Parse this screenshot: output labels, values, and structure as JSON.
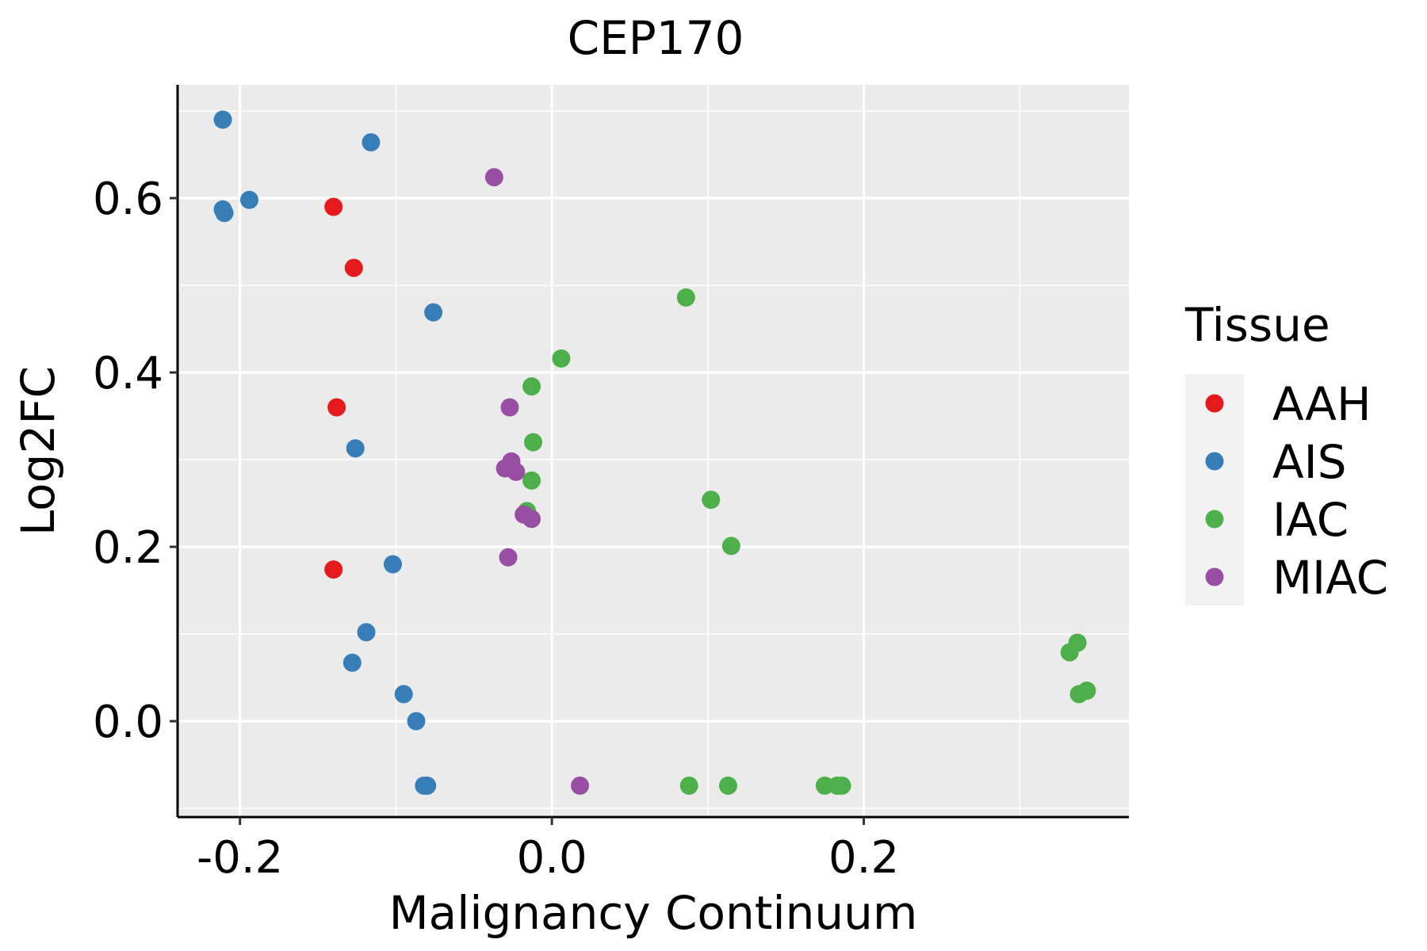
{
  "chart_data": {
    "type": "scatter",
    "title": "CEP170",
    "xlabel": "Malignancy Continuum",
    "ylabel": "Log2FC",
    "xlim": [
      -0.24,
      0.37
    ],
    "ylim": [
      -0.11,
      0.73
    ],
    "x_ticks": [
      -0.2,
      0.0,
      0.2
    ],
    "x_tick_labels": [
      "-0.2",
      "0.0",
      "0.2"
    ],
    "y_ticks": [
      0.0,
      0.2,
      0.4,
      0.6
    ],
    "y_tick_labels": [
      "0.0",
      "0.2",
      "0.4",
      "0.6"
    ],
    "grid": true,
    "legend": {
      "title": "Tissue",
      "position": "right"
    },
    "series": [
      {
        "name": "AAH",
        "color": "#E41A1C",
        "points": [
          {
            "x": -0.14,
            "y": 0.59
          },
          {
            "x": -0.127,
            "y": 0.52
          },
          {
            "x": -0.138,
            "y": 0.36
          },
          {
            "x": -0.14,
            "y": 0.174
          }
        ]
      },
      {
        "name": "AIS",
        "color": "#377EB8",
        "points": [
          {
            "x": -0.211,
            "y": 0.69
          },
          {
            "x": -0.116,
            "y": 0.664
          },
          {
            "x": -0.194,
            "y": 0.598
          },
          {
            "x": -0.211,
            "y": 0.587
          },
          {
            "x": -0.21,
            "y": 0.583
          },
          {
            "x": -0.076,
            "y": 0.469
          },
          {
            "x": -0.126,
            "y": 0.313
          },
          {
            "x": -0.102,
            "y": 0.18
          },
          {
            "x": -0.119,
            "y": 0.102
          },
          {
            "x": -0.128,
            "y": 0.067
          },
          {
            "x": -0.095,
            "y": 0.031
          },
          {
            "x": -0.087,
            "y": 0.0
          },
          {
            "x": -0.082,
            "y": -0.074
          },
          {
            "x": -0.08,
            "y": -0.074
          }
        ]
      },
      {
        "name": "IAC",
        "color": "#4DAF4A",
        "points": [
          {
            "x": 0.086,
            "y": 0.486
          },
          {
            "x": 0.006,
            "y": 0.416
          },
          {
            "x": -0.013,
            "y": 0.384
          },
          {
            "x": -0.012,
            "y": 0.32
          },
          {
            "x": -0.013,
            "y": 0.276
          },
          {
            "x": 0.102,
            "y": 0.254
          },
          {
            "x": -0.016,
            "y": 0.241
          },
          {
            "x": 0.115,
            "y": 0.201
          },
          {
            "x": 0.337,
            "y": 0.09
          },
          {
            "x": 0.332,
            "y": 0.079
          },
          {
            "x": 0.343,
            "y": 0.035
          },
          {
            "x": 0.338,
            "y": 0.031
          },
          {
            "x": 0.088,
            "y": -0.074
          },
          {
            "x": 0.113,
            "y": -0.074
          },
          {
            "x": 0.175,
            "y": -0.074
          },
          {
            "x": 0.183,
            "y": -0.074
          },
          {
            "x": 0.186,
            "y": -0.074
          }
        ]
      },
      {
        "name": "MIAC",
        "color": "#984EA3",
        "points": [
          {
            "x": -0.037,
            "y": 0.624
          },
          {
            "x": -0.027,
            "y": 0.36
          },
          {
            "x": -0.026,
            "y": 0.298
          },
          {
            "x": -0.03,
            "y": 0.29
          },
          {
            "x": -0.023,
            "y": 0.286
          },
          {
            "x": -0.018,
            "y": 0.237
          },
          {
            "x": -0.013,
            "y": 0.232
          },
          {
            "x": -0.028,
            "y": 0.188
          },
          {
            "x": 0.018,
            "y": -0.074
          }
        ]
      }
    ]
  }
}
